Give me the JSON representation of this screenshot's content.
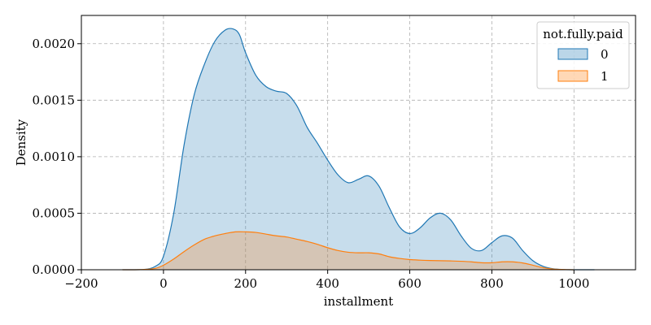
{
  "chart_data": {
    "type": "area",
    "title": "",
    "xlabel": "installment",
    "ylabel": "Density",
    "xlim": [
      -200,
      1150
    ],
    "ylim": [
      0,
      0.00225
    ],
    "xticks": [
      -200,
      0,
      200,
      400,
      600,
      800,
      1000
    ],
    "xtick_labels": [
      "−200",
      "0",
      "200",
      "400",
      "600",
      "800",
      "1000"
    ],
    "yticks": [
      0,
      0.0005,
      0.001,
      0.0015,
      0.002
    ],
    "ytick_labels": [
      "0.0000",
      "0.0005",
      "0.0010",
      "0.0015",
      "0.0020"
    ],
    "grid": true,
    "grid_style": "dashed",
    "legend": {
      "title": "not.fully.paid",
      "position": "top-right"
    },
    "series": [
      {
        "name": "0",
        "stroke": "#1f77b4",
        "fill": "#1f77b4",
        "fill_opacity": 0.25,
        "x": [
          -100,
          -50,
          -20,
          0,
          25,
          50,
          75,
          100,
          125,
          150,
          170,
          185,
          200,
          225,
          250,
          275,
          300,
          325,
          350,
          375,
          400,
          425,
          450,
          475,
          500,
          525,
          550,
          575,
          600,
          625,
          650,
          675,
          700,
          725,
          750,
          775,
          800,
          825,
          850,
          875,
          900,
          925,
          950,
          975,
          1000,
          1050
        ],
        "y": [
          0,
          2e-06,
          3e-05,
          0.00012,
          0.0005,
          0.0011,
          0.00155,
          0.00182,
          0.00202,
          0.00212,
          0.00213,
          0.00208,
          0.00192,
          0.00172,
          0.00162,
          0.00158,
          0.00156,
          0.00145,
          0.00126,
          0.00112,
          0.00097,
          0.00084,
          0.00077,
          0.0008,
          0.00083,
          0.00074,
          0.00055,
          0.00038,
          0.00032,
          0.00037,
          0.00046,
          0.0005,
          0.00044,
          0.0003,
          0.00019,
          0.00017,
          0.00024,
          0.0003,
          0.00028,
          0.00017,
          8e-05,
          3e-05,
          8e-06,
          2e-06,
          0,
          0
        ]
      },
      {
        "name": "1",
        "stroke": "#ff7f0e",
        "fill": "#ff7f0e",
        "fill_opacity": 0.25,
        "x": [
          -100,
          -50,
          -20,
          0,
          25,
          50,
          75,
          100,
          125,
          150,
          175,
          200,
          225,
          250,
          275,
          300,
          325,
          350,
          375,
          400,
          425,
          450,
          475,
          500,
          525,
          550,
          575,
          600,
          625,
          650,
          675,
          700,
          725,
          750,
          775,
          800,
          825,
          850,
          875,
          900,
          925,
          950,
          1000
        ],
        "y": [
          0,
          2e-06,
          1.2e-05,
          4e-05,
          9.5e-05,
          0.00016,
          0.00022,
          0.00027,
          0.0003,
          0.00032,
          0.000335,
          0.000335,
          0.00033,
          0.000315,
          0.0003,
          0.00029,
          0.00027,
          0.00025,
          0.000225,
          0.000195,
          0.00017,
          0.000155,
          0.00015,
          0.00015,
          0.00014,
          0.000115,
          0.0001,
          9e-05,
          8.5e-05,
          8.2e-05,
          8e-05,
          7.8e-05,
          7.5e-05,
          7e-05,
          6.2e-05,
          6.2e-05,
          7e-05,
          7e-05,
          6e-05,
          4e-05,
          1.8e-05,
          6e-06,
          0
        ]
      }
    ]
  }
}
